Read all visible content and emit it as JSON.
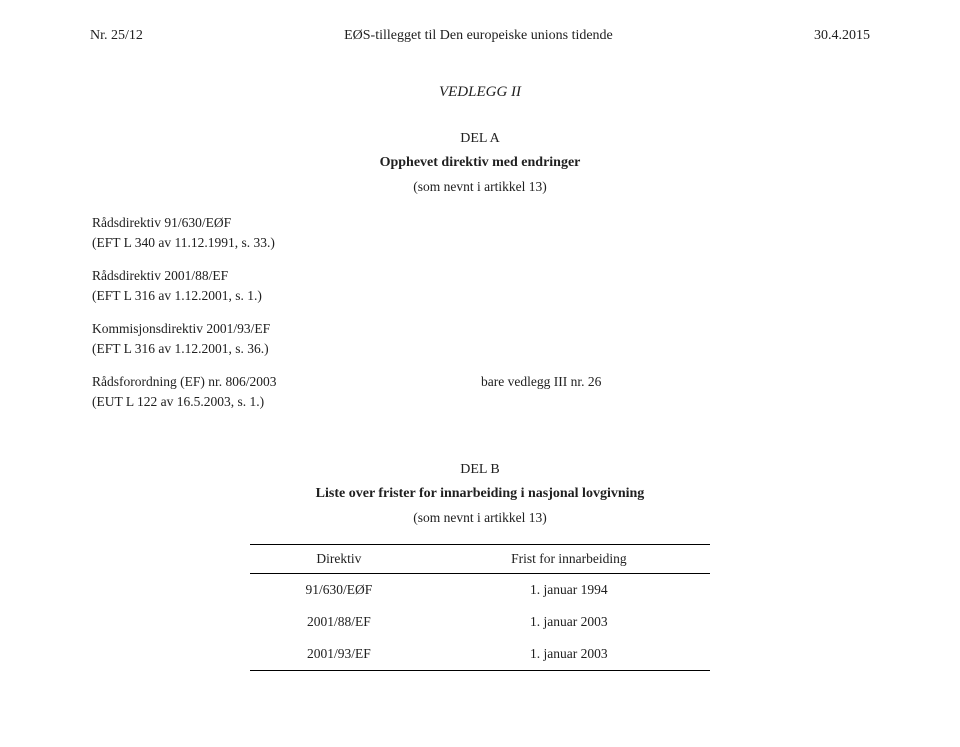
{
  "header": {
    "left": "Nr. 25/12",
    "center": "EØS-tillegget til Den europeiske unions tidende",
    "right": "30.4.2015"
  },
  "vedlegg": {
    "title": "VEDLEGG II",
    "del_a": {
      "label": "DEL A",
      "subtitle": "Opphevet direktiv med endringer",
      "note": "(som nevnt i artikkel 13)"
    },
    "refs": [
      {
        "line1": "Rådsdirektiv 91/630/EØF",
        "line2": "(EFT L 340 av 11.12.1991, s. 33.)"
      },
      {
        "line1": "Rådsdirektiv 2001/88/EF",
        "line2": "(EFT L 316 av 1.12.2001, s. 1.)"
      },
      {
        "line1": "Kommisjonsdirektiv 2001/93/EF",
        "line2": "(EFT L 316 av 1.12.2001, s. 36.)"
      }
    ],
    "last_ref": {
      "line1": "Rådsforordning (EF) nr. 806/2003",
      "line2": "(EUT L 122 av 16.5.2003, s. 1.)",
      "right": "bare vedlegg III nr. 26"
    },
    "del_b": {
      "label": "DEL B",
      "subtitle": "Liste over frister for innarbeiding i nasjonal lovgivning",
      "note": "(som nevnt i artikkel 13)"
    },
    "table": {
      "col1": "Direktiv",
      "col2": "Frist for innarbeiding",
      "rows": [
        {
          "c1": "91/630/EØF",
          "c2": "1. januar 1994"
        },
        {
          "c1": "2001/88/EF",
          "c2": "1. januar 2003"
        },
        {
          "c1": "2001/93/EF",
          "c2": "1. januar 2003"
        }
      ]
    }
  }
}
